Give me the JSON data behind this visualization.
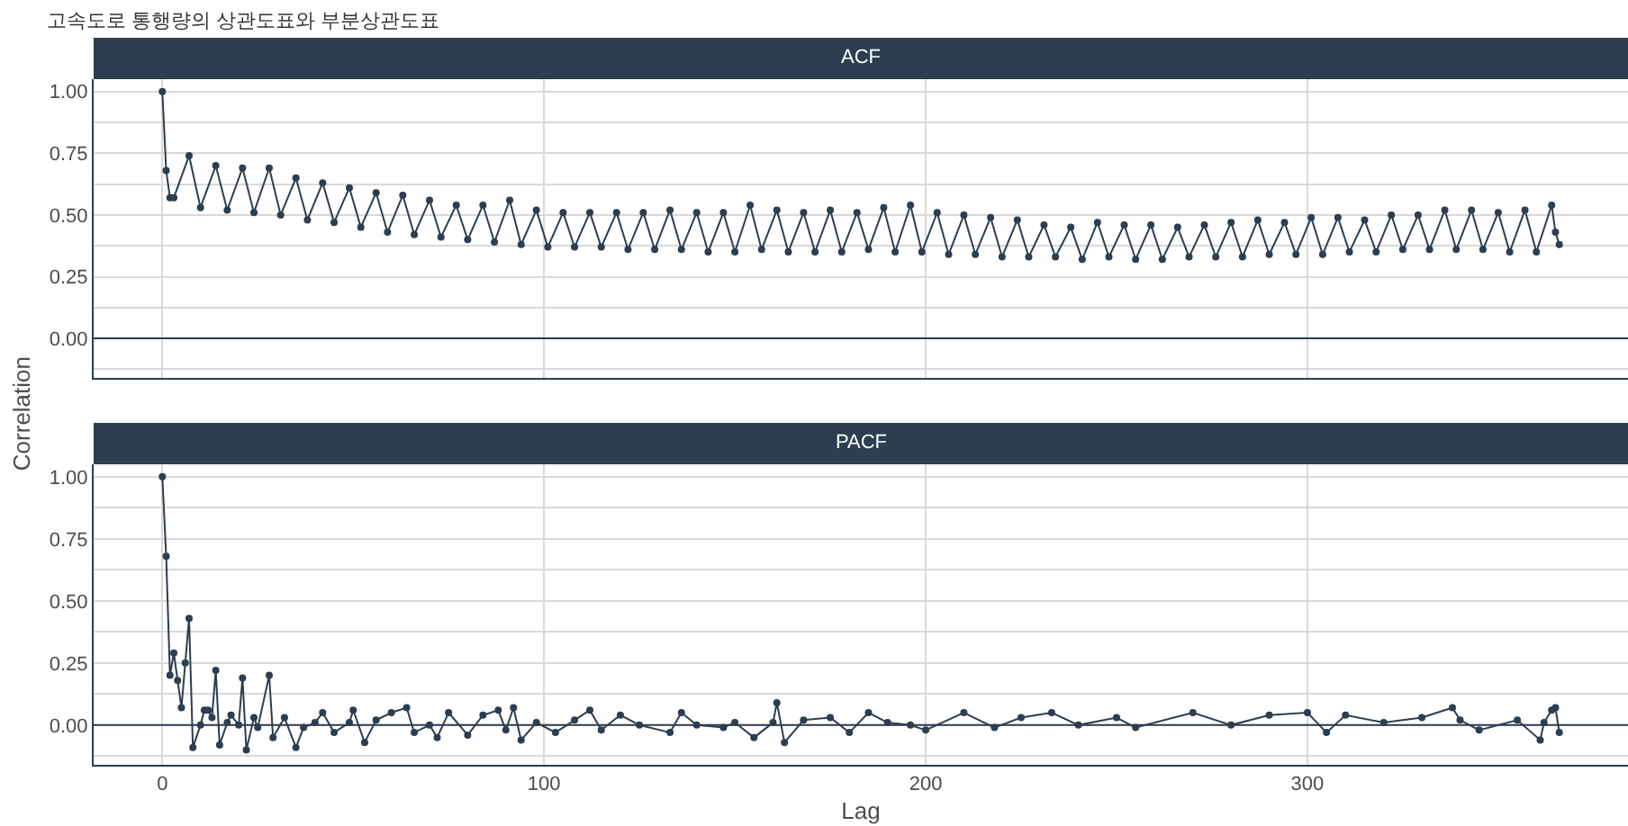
{
  "chart_data": [
    {
      "type": "line",
      "title": "고속도로 통행량의 상관도표와 부분상관도표",
      "subtitle": "ACF",
      "tick_labels": "y",
      "grid": true,
      "marker": "circle",
      "line_style": "solid",
      "xlim": [
        -18,
        384
      ],
      "xticks": [
        0,
        100,
        200,
        300
      ],
      "ylim": [
        -0.16,
        1.05
      ],
      "yticks": [
        {
          "value": -0.125,
          "label": null
        },
        {
          "value": 0,
          "label": "0.00"
        },
        {
          "value": 0.125,
          "label": null
        },
        {
          "value": 0.25,
          "label": "0.25"
        },
        {
          "value": 0.375,
          "label": null
        },
        {
          "value": 0.5,
          "label": "0.50"
        },
        {
          "value": 0.625,
          "label": null
        },
        {
          "value": 0.75,
          "label": "0.75"
        },
        {
          "value": 0.875,
          "label": null
        },
        {
          "value": 1,
          "label": "1.00"
        }
      ],
      "ref_lines": [
        {
          "axis": "y",
          "value": 0,
          "color": "#2c3e50"
        }
      ],
      "series": [
        {
          "color": "#2c3e50",
          "x": [
            0,
            1,
            2,
            3,
            7,
            10,
            14,
            17,
            21,
            24,
            28,
            31,
            35,
            38,
            42,
            45,
            49,
            52,
            56,
            59,
            63,
            66,
            70,
            73,
            77,
            80,
            84,
            87,
            91,
            94,
            98,
            101,
            105,
            108,
            112,
            115,
            119,
            122,
            126,
            129,
            133,
            136,
            140,
            143,
            147,
            150,
            154,
            157,
            161,
            164,
            168,
            171,
            175,
            178,
            182,
            185,
            189,
            192,
            196,
            199,
            203,
            206,
            210,
            213,
            217,
            220,
            224,
            227,
            231,
            234,
            238,
            241,
            245,
            248,
            252,
            255,
            259,
            262,
            266,
            269,
            273,
            276,
            280,
            283,
            287,
            290,
            294,
            297,
            301,
            304,
            308,
            311,
            315,
            318,
            322,
            325,
            329,
            332,
            336,
            339,
            343,
            346,
            350,
            353,
            357,
            360,
            364,
            365,
            366
          ],
          "values": [
            1.0,
            0.68,
            0.57,
            0.57,
            0.74,
            0.53,
            0.7,
            0.52,
            0.69,
            0.51,
            0.69,
            0.5,
            0.65,
            0.48,
            0.63,
            0.47,
            0.61,
            0.45,
            0.59,
            0.43,
            0.58,
            0.42,
            0.56,
            0.41,
            0.54,
            0.4,
            0.54,
            0.39,
            0.56,
            0.38,
            0.52,
            0.37,
            0.51,
            0.37,
            0.51,
            0.37,
            0.51,
            0.36,
            0.51,
            0.36,
            0.52,
            0.36,
            0.51,
            0.35,
            0.51,
            0.35,
            0.54,
            0.36,
            0.52,
            0.35,
            0.51,
            0.35,
            0.52,
            0.35,
            0.51,
            0.36,
            0.53,
            0.35,
            0.54,
            0.35,
            0.51,
            0.34,
            0.5,
            0.34,
            0.49,
            0.33,
            0.48,
            0.33,
            0.46,
            0.33,
            0.45,
            0.32,
            0.47,
            0.33,
            0.46,
            0.32,
            0.46,
            0.32,
            0.45,
            0.33,
            0.46,
            0.33,
            0.47,
            0.33,
            0.48,
            0.34,
            0.47,
            0.34,
            0.49,
            0.34,
            0.49,
            0.35,
            0.48,
            0.35,
            0.5,
            0.36,
            0.5,
            0.36,
            0.52,
            0.36,
            0.52,
            0.36,
            0.51,
            0.35,
            0.52,
            0.35,
            0.54,
            0.43,
            0.38
          ]
        }
      ]
    },
    {
      "type": "line",
      "subtitle": "PACF",
      "xlabel": "Lag",
      "ylabel": "Correlation",
      "grid": true,
      "marker": "circle",
      "line_style": "solid",
      "xlim": [
        -18,
        384
      ],
      "xticks": [
        0,
        100,
        200,
        300
      ],
      "ylim": [
        -0.16,
        1.05
      ],
      "yticks": [
        {
          "value": -0.125,
          "label": null
        },
        {
          "value": 0,
          "label": "0.00"
        },
        {
          "value": 0.125,
          "label": null
        },
        {
          "value": 0.25,
          "label": "0.25"
        },
        {
          "value": 0.375,
          "label": null
        },
        {
          "value": 0.5,
          "label": "0.50"
        },
        {
          "value": 0.625,
          "label": null
        },
        {
          "value": 0.75,
          "label": "0.75"
        },
        {
          "value": 0.875,
          "label": null
        },
        {
          "value": 1,
          "label": "1.00"
        }
      ],
      "ref_lines": [
        {
          "axis": "y",
          "value": 0,
          "color": "#2c3e50"
        }
      ],
      "series": [
        {
          "color": "#2c3e50",
          "x": [
            0,
            1,
            2,
            3,
            4,
            5,
            6,
            7,
            8,
            10,
            11,
            12,
            13,
            14,
            15,
            17,
            18,
            20,
            21,
            22,
            24,
            25,
            28,
            29,
            32,
            35,
            37,
            40,
            42,
            45,
            49,
            50,
            53,
            56,
            60,
            64,
            66,
            70,
            72,
            75,
            80,
            84,
            88,
            90,
            92,
            94,
            98,
            103,
            108,
            112,
            115,
            120,
            125,
            133,
            136,
            140,
            147,
            150,
            155,
            160,
            161,
            163,
            168,
            175,
            180,
            185,
            190,
            196,
            200,
            210,
            218,
            225,
            233,
            240,
            250,
            255,
            270,
            280,
            290,
            300,
            305,
            310,
            320,
            330,
            338,
            340,
            345,
            355,
            361,
            362,
            364,
            365,
            366
          ],
          "values": [
            1.0,
            0.68,
            0.2,
            0.29,
            0.18,
            0.07,
            0.25,
            0.43,
            -0.09,
            0.0,
            0.06,
            0.06,
            0.03,
            0.22,
            -0.08,
            0.01,
            0.04,
            0.0,
            0.19,
            -0.1,
            0.03,
            -0.01,
            0.2,
            -0.05,
            0.03,
            -0.09,
            -0.01,
            0.01,
            0.05,
            -0.03,
            0.01,
            0.06,
            -0.07,
            0.02,
            0.05,
            0.07,
            -0.03,
            0.0,
            -0.05,
            0.05,
            -0.04,
            0.04,
            0.06,
            -0.02,
            0.07,
            -0.06,
            0.01,
            -0.03,
            0.02,
            0.06,
            -0.02,
            0.04,
            0.0,
            -0.03,
            0.05,
            0.0,
            -0.01,
            0.01,
            -0.05,
            0.01,
            0.09,
            -0.07,
            0.02,
            0.03,
            -0.03,
            0.05,
            0.01,
            0.0,
            -0.02,
            0.05,
            -0.01,
            0.03,
            0.05,
            0.0,
            0.03,
            -0.01,
            0.05,
            0.0,
            0.04,
            0.05,
            -0.03,
            0.04,
            0.01,
            0.03,
            0.07,
            0.02,
            -0.02,
            0.02,
            -0.06,
            0.01,
            0.06,
            0.07,
            -0.03
          ]
        }
      ]
    }
  ]
}
